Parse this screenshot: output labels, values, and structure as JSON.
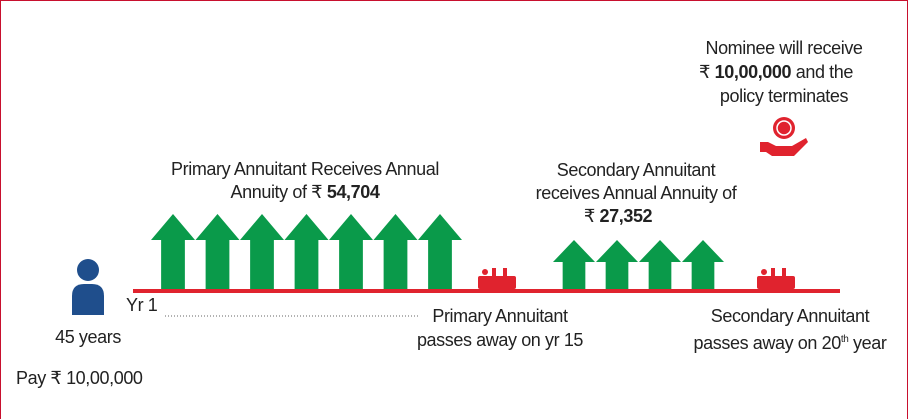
{
  "person": {
    "age": "45 years",
    "pay": "Pay ₹ 10,00,000",
    "start": "Yr 1"
  },
  "primary_receives": {
    "line1": "Primary Annuitant Receives Annual",
    "line2": "Annuity of ₹",
    "amount": "54,704"
  },
  "secondary_receives": {
    "line1": "Secondary Annuitant",
    "line2": "receives Annual Annuity of",
    "currency": "₹",
    "amount": "27,352"
  },
  "nominee": {
    "line1": "Nominee will receive",
    "currency": "₹",
    "amount": "10,00,000",
    "line2_rest": "and the",
    "line3": "policy terminates"
  },
  "primary_death": {
    "line1": "Primary Annuitant",
    "line2": "passes away on yr 15"
  },
  "secondary_death": {
    "line1": "Secondary Annuitant",
    "line2": "passes away on 20",
    "suffix": "th",
    "line2_end": "year"
  }
}
